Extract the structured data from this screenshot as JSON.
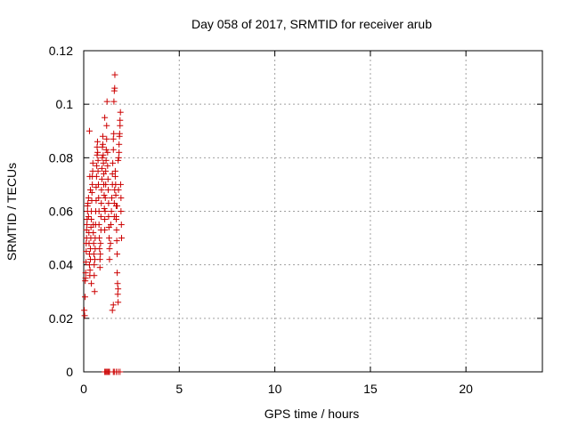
{
  "chart_data": {
    "type": "scatter",
    "title": "Day 058 of 2017, SRMTID for receiver arub",
    "xlabel": "GPS time / hours",
    "ylabel": "SRMTID / TECUs",
    "xlim": [
      0,
      24
    ],
    "ylim": [
      0,
      0.12
    ],
    "xticks": [
      0,
      5,
      10,
      15,
      20
    ],
    "yticks": [
      0,
      0.02,
      0.04,
      0.06,
      0.08,
      0.1,
      0.12
    ],
    "xtick_labels": [
      "0",
      "5",
      "10",
      "15",
      "20"
    ],
    "ytick_labels": [
      "0",
      "0.02",
      "0.04",
      "0.06",
      "0.08",
      "0.1",
      "0.12"
    ],
    "grid": true,
    "marker": "+",
    "color": "#cc0000",
    "points": [
      [
        0.03,
        0.023
      ],
      [
        0.05,
        0.021
      ],
      [
        0.07,
        0.028
      ],
      [
        0.08,
        0.034
      ],
      [
        0.1,
        0.035
      ],
      [
        0.1,
        0.037
      ],
      [
        0.12,
        0.041
      ],
      [
        0.13,
        0.045
      ],
      [
        0.13,
        0.048
      ],
      [
        0.15,
        0.05
      ],
      [
        0.15,
        0.053
      ],
      [
        0.17,
        0.055
      ],
      [
        0.18,
        0.057
      ],
      [
        0.2,
        0.06
      ],
      [
        0.2,
        0.062
      ],
      [
        0.22,
        0.063
      ],
      [
        0.25,
        0.065
      ],
      [
        0.25,
        0.058
      ],
      [
        0.27,
        0.052
      ],
      [
        0.28,
        0.048
      ],
      [
        0.3,
        0.044
      ],
      [
        0.3,
        0.04
      ],
      [
        0.32,
        0.036
      ],
      [
        0.33,
        0.038
      ],
      [
        0.35,
        0.042
      ],
      [
        0.35,
        0.046
      ],
      [
        0.37,
        0.05
      ],
      [
        0.38,
        0.054
      ],
      [
        0.4,
        0.057
      ],
      [
        0.4,
        0.06
      ],
      [
        0.42,
        0.064
      ],
      [
        0.43,
        0.067
      ],
      [
        0.45,
        0.07
      ],
      [
        0.45,
        0.073
      ],
      [
        0.47,
        0.075
      ],
      [
        0.48,
        0.078
      ],
      [
        0.3,
        0.09
      ],
      [
        0.32,
        0.073
      ],
      [
        0.35,
        0.068
      ],
      [
        0.4,
        0.033
      ],
      [
        0.5,
        0.055
      ],
      [
        0.5,
        0.052
      ],
      [
        0.52,
        0.048
      ],
      [
        0.53,
        0.044
      ],
      [
        0.55,
        0.04
      ],
      [
        0.55,
        0.036
      ],
      [
        0.57,
        0.03
      ],
      [
        0.58,
        0.042
      ],
      [
        0.6,
        0.046
      ],
      [
        0.6,
        0.05
      ],
      [
        0.62,
        0.055
      ],
      [
        0.63,
        0.06
      ],
      [
        0.65,
        0.064
      ],
      [
        0.65,
        0.069
      ],
      [
        0.67,
        0.073
      ],
      [
        0.68,
        0.077
      ],
      [
        0.7,
        0.081
      ],
      [
        0.7,
        0.084
      ],
      [
        0.72,
        0.086
      ],
      [
        0.73,
        0.082
      ],
      [
        0.75,
        0.079
      ],
      [
        0.75,
        0.075
      ],
      [
        0.77,
        0.07
      ],
      [
        0.78,
        0.065
      ],
      [
        0.8,
        0.06
      ],
      [
        0.8,
        0.055
      ],
      [
        0.82,
        0.05
      ],
      [
        0.83,
        0.046
      ],
      [
        0.85,
        0.042
      ],
      [
        0.85,
        0.039
      ],
      [
        0.87,
        0.044
      ],
      [
        0.88,
        0.048
      ],
      [
        0.9,
        0.053
      ],
      [
        0.9,
        0.058
      ],
      [
        0.92,
        0.063
      ],
      [
        0.93,
        0.068
      ],
      [
        0.95,
        0.072
      ],
      [
        0.95,
        0.076
      ],
      [
        0.97,
        0.08
      ],
      [
        0.98,
        0.084
      ],
      [
        1.0,
        0.088
      ],
      [
        1.0,
        0.085
      ],
      [
        1.02,
        0.081
      ],
      [
        1.03,
        0.078
      ],
      [
        1.05,
        0.074
      ],
      [
        1.05,
        0.07
      ],
      [
        1.07,
        0.066
      ],
      [
        1.08,
        0.061
      ],
      [
        1.1,
        0.057
      ],
      [
        1.1,
        0.053
      ],
      [
        1.12,
        0.06
      ],
      [
        1.13,
        0.065
      ],
      [
        1.15,
        0.07
      ],
      [
        1.15,
        0.075
      ],
      [
        1.17,
        0.079
      ],
      [
        1.18,
        0.083
      ],
      [
        1.2,
        0.087
      ],
      [
        1.2,
        0.092
      ],
      [
        1.1,
        0.095
      ],
      [
        1.22,
        0.101
      ],
      [
        1.25,
        0.082
      ],
      [
        1.25,
        0.077
      ],
      [
        1.27,
        0.072
      ],
      [
        1.28,
        0.068
      ],
      [
        1.3,
        0.063
      ],
      [
        1.3,
        0.058
      ],
      [
        1.32,
        0.054
      ],
      [
        1.33,
        0.05
      ],
      [
        1.35,
        0.046
      ],
      [
        1.35,
        0.042
      ],
      [
        1.4,
        0.048
      ],
      [
        1.42,
        0.055
      ],
      [
        1.45,
        0.06
      ],
      [
        1.47,
        0.065
      ],
      [
        1.5,
        0.07
      ],
      [
        1.5,
        0.074
      ],
      [
        1.52,
        0.078
      ],
      [
        1.55,
        0.083
      ],
      [
        1.55,
        0.087
      ],
      [
        1.57,
        0.089
      ],
      [
        1.58,
        0.101
      ],
      [
        1.6,
        0.105
      ],
      [
        1.62,
        0.106
      ],
      [
        1.63,
        0.111
      ],
      [
        1.5,
        0.023
      ],
      [
        1.55,
        0.025
      ],
      [
        1.6,
        0.058
      ],
      [
        1.6,
        0.063
      ],
      [
        1.62,
        0.068
      ],
      [
        1.65,
        0.073
      ],
      [
        1.65,
        0.075
      ],
      [
        1.67,
        0.07
      ],
      [
        1.68,
        0.066
      ],
      [
        1.7,
        0.062
      ],
      [
        1.7,
        0.057
      ],
      [
        1.72,
        0.053
      ],
      [
        1.73,
        0.049
      ],
      [
        1.75,
        0.044
      ],
      [
        1.75,
        0.037
      ],
      [
        1.77,
        0.033
      ],
      [
        1.78,
        0.029
      ],
      [
        1.8,
        0.026
      ],
      [
        1.8,
        0.031
      ],
      [
        1.82,
        0.068
      ],
      [
        1.83,
        0.08
      ],
      [
        1.85,
        0.082
      ],
      [
        1.85,
        0.085
      ],
      [
        1.87,
        0.088
      ],
      [
        1.88,
        0.089
      ],
      [
        1.9,
        0.092
      ],
      [
        1.9,
        0.094
      ],
      [
        1.92,
        0.097
      ],
      [
        1.93,
        0.07
      ],
      [
        1.95,
        0.065
      ],
      [
        1.95,
        0.06
      ],
      [
        1.97,
        0.055
      ],
      [
        1.98,
        0.05
      ],
      [
        1.8,
        0.079
      ],
      [
        1.75,
        0.062
      ],
      [
        1.7,
        0.058
      ],
      [
        1.1,
        0.0
      ],
      [
        1.15,
        0.0
      ],
      [
        1.2,
        0.0
      ],
      [
        1.25,
        0.0
      ],
      [
        1.3,
        0.0
      ],
      [
        1.35,
        0.0
      ],
      [
        1.55,
        0.0
      ],
      [
        1.6,
        0.0
      ],
      [
        1.7,
        0.0
      ],
      [
        1.8,
        0.0
      ],
      [
        1.9,
        0.0
      ]
    ]
  }
}
